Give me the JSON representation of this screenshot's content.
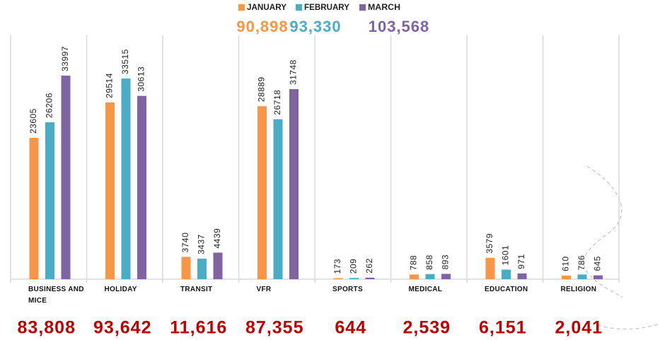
{
  "chart_data": {
    "type": "bar",
    "categories": [
      "BUSINESS AND MICE",
      "HOLIDAY",
      "TRANSIT",
      "VFR",
      "SPORTS",
      "MEDICAL",
      "EDUCATION",
      "RELIGION"
    ],
    "series": [
      {
        "name": "JANUARY",
        "color": "#f79646",
        "values": [
          23605,
          29514,
          3740,
          28889,
          173,
          788,
          3579,
          610
        ],
        "total": 90898,
        "total_label": "90,898"
      },
      {
        "name": "FEBRUARY",
        "color": "#4bacc6",
        "values": [
          26206,
          33515,
          3437,
          26718,
          209,
          858,
          1601,
          786
        ],
        "total": 93330,
        "total_label": "93,330"
      },
      {
        "name": "MARCH",
        "color": "#8064a2",
        "values": [
          33997,
          30613,
          4439,
          31748,
          262,
          893,
          971,
          645
        ],
        "total": 103568,
        "total_label": "103,568"
      }
    ],
    "category_totals": [
      83808,
      93642,
      11616,
      87355,
      644,
      2539,
      6151,
      2041
    ],
    "category_total_labels": [
      "83,808",
      "93,642",
      "11,616",
      "87,355",
      "644",
      "2,539",
      "6,151",
      "2,041"
    ],
    "total_color": "#c00000"
  }
}
